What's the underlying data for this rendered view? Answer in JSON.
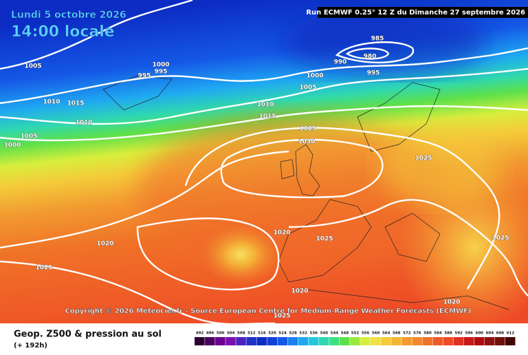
{
  "header": {
    "date": "Lundi 5 octobre 2026",
    "time": "14:00 locale",
    "run": "Run ECMWF 0.25° 12 Z du Dimanche 27 septembre 2026"
  },
  "isobar_labels": [
    "1005",
    "1000",
    "995",
    "995",
    "1010",
    "1015",
    "1010",
    "1005",
    "1000",
    "985",
    "980",
    "990",
    "995",
    "1000",
    "1005",
    "1010",
    "1015",
    "1025",
    "1030",
    "1025",
    "1020",
    "1025",
    "1020",
    "1025",
    "1020",
    "1025",
    "1020",
    "1025"
  ],
  "copyright": "Copyright © 2026 Meteociel.fr - Source European Centre for Medium-Range Weather Forecasts (ECMWF)",
  "footer": {
    "product": "Geop. Z500 & pression au sol",
    "step": "(+ 192h)"
  },
  "colorbar": {
    "labels": [
      492,
      496,
      500,
      504,
      508,
      512,
      516,
      520,
      524,
      528,
      532,
      536,
      540,
      544,
      548,
      552,
      556,
      560,
      564,
      568,
      572,
      576,
      580,
      584,
      588,
      592,
      596,
      600,
      604,
      608,
      612
    ],
    "colors": [
      "#2a0030",
      "#4a0060",
      "#6a0090",
      "#7a10b0",
      "#5020c0",
      "#2030c8",
      "#0c2cc4",
      "#1040d8",
      "#1558e6",
      "#1a80ee",
      "#1fa8f2",
      "#22c8e0",
      "#2fd8b0",
      "#3ee080",
      "#5ee04a",
      "#98e840",
      "#d8ee3c",
      "#f0e040",
      "#f4cc3a",
      "#f4b434",
      "#f29a30",
      "#f28a2c",
      "#f07228",
      "#ee5a26",
      "#ee4a26",
      "#e03020",
      "#c81818",
      "#b00c10",
      "#901010",
      "#701008",
      "#400800"
    ]
  }
}
